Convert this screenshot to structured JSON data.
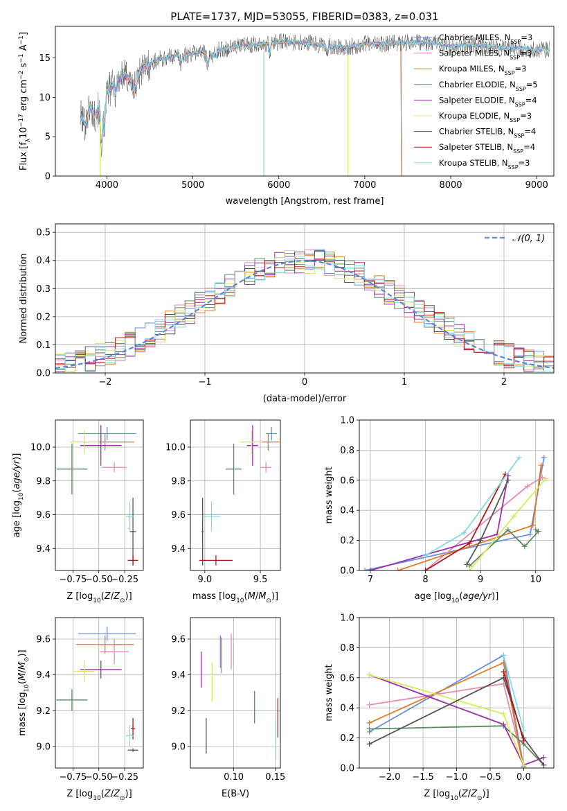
{
  "title": "PLATE=1737, MJD=53055, FIBERID=0383, z=0.031",
  "colors": {
    "chabrier_miles": "#6a8fd9",
    "salpeter_miles": "#e68ab8",
    "kroupa_miles": "#e07b26",
    "chabrier_elodie": "#5a8a5f",
    "salpeter_elodie": "#9b30a8",
    "kroupa_elodie": "#d7ea5a",
    "chabrier_stelib": "#555555",
    "salpeter_stelib": "#b01818",
    "kroupa_stelib": "#86dbe0",
    "normal": "#5b86d9",
    "grid": "#b0b0b0"
  },
  "legend_spectrum": [
    {
      "base": "Chabrier MILES, N",
      "sub": "SSP",
      "tail": "=3",
      "color": "chabrier_miles"
    },
    {
      "base": "Salpeter MILES, N",
      "sub": "SSP",
      "tail": "=3",
      "color": "salpeter_miles"
    },
    {
      "base": "Kroupa MILES, N",
      "sub": "SSP",
      "tail": "=3",
      "color": "kroupa_miles"
    },
    {
      "base": "Chabrier ELODIE, N",
      "sub": "SSP",
      "tail": "=5",
      "color": "chabrier_elodie"
    },
    {
      "base": "Salpeter ELODIE, N",
      "sub": "SSP",
      "tail": "=4",
      "color": "salpeter_elodie"
    },
    {
      "base": "Kroupa ELODIE, N",
      "sub": "SSP",
      "tail": "=3",
      "color": "kroupa_elodie"
    },
    {
      "base": "Chabrier STELIB, N",
      "sub": "SSP",
      "tail": "=4",
      "color": "chabrier_stelib"
    },
    {
      "base": "Salpeter STELIB, N",
      "sub": "SSP",
      "tail": "=4",
      "color": "salpeter_stelib"
    },
    {
      "base": "Kroupa STELIB, N",
      "sub": "SSP",
      "tail": "=3",
      "color": "kroupa_stelib"
    }
  ],
  "chart_data": [
    {
      "id": "spectrum",
      "type": "line",
      "xlabel": "wavelength [Angstrom, rest frame]",
      "ylabel": "Flux [fλ10⁻¹⁷ erg cm⁻² s⁻¹ A⁻¹]",
      "xlim": [
        3400,
        9200
      ],
      "ylim": [
        0,
        19
      ],
      "xticks": [
        4000,
        5000,
        6000,
        7000,
        8000,
        9000
      ],
      "yticks": [
        0,
        5,
        10,
        15
      ],
      "continuum_x": [
        3700,
        3750,
        3800,
        3850,
        3900,
        3950,
        4000,
        4100,
        4200,
        4300,
        4400,
        4500,
        4600,
        4700,
        4800,
        4900,
        5000,
        5100,
        5200,
        5300,
        5400,
        5500,
        5600,
        5700,
        5800,
        5900,
        6000,
        6200,
        6400,
        6600,
        6800,
        7000,
        7200,
        7400,
        7600,
        7800,
        8000,
        8200,
        8400,
        8600,
        8800,
        9000,
        9150
      ],
      "continuum_y": [
        7.5,
        6.5,
        9,
        7.5,
        8.5,
        7,
        10.5,
        12,
        12.8,
        12,
        13.5,
        14.2,
        14.8,
        15,
        15.3,
        15.3,
        15.6,
        15.8,
        15.2,
        16,
        16.2,
        16.4,
        16.6,
        16.7,
        16.8,
        16.8,
        17,
        17,
        16.8,
        16.4,
        16.3,
        16.8,
        16.8,
        16.9,
        17,
        16.9,
        16.5,
        16.7,
        16.5,
        16.3,
        16.2,
        16.0,
        16.1
      ]
    },
    {
      "id": "residuals",
      "type": "histogram",
      "xlabel": "(data-model)/error",
      "ylabel": "Normed distribution",
      "xlim": [
        -2.5,
        2.5
      ],
      "ylim": [
        0,
        0.53
      ],
      "xticks": [
        -2,
        -1,
        0,
        1,
        2
      ],
      "yticks": [
        0.0,
        0.1,
        0.2,
        0.3,
        0.4,
        0.5
      ],
      "legend": "𝒩(0, 1)",
      "bin_width": 0.1
    },
    {
      "id": "age_vs_Z",
      "type": "scatter",
      "xlabel": "Z [log₁₀(Z/Z⊙)]",
      "ylabel": "age  [log₁₀(age/yr)]",
      "xlim": [
        -0.92,
        -0.07
      ],
      "ylim": [
        9.27,
        10.16
      ],
      "xticks": [
        -0.75,
        -0.5,
        -0.25
      ],
      "yticks": [
        9.4,
        9.6,
        9.8,
        10.0
      ],
      "points": [
        {
          "s": "chabrier_miles",
          "x": -0.42,
          "y": 10.08,
          "ex": 0.28,
          "ey": 0.04
        },
        {
          "s": "salpeter_miles",
          "x": -0.35,
          "y": 9.88,
          "ex": 0.12,
          "ey": 0.03
        },
        {
          "s": "kroupa_miles",
          "x": -0.44,
          "y": 10.03,
          "ex": 0.28,
          "ey": 0.05
        },
        {
          "s": "chabrier_elodie",
          "x": -0.76,
          "y": 9.87,
          "ex": 0.15,
          "ey": 0.15
        },
        {
          "s": "salpeter_elodie",
          "x": -0.48,
          "y": 10.01,
          "ex": 0.2,
          "ey": 0.12
        },
        {
          "s": "kroupa_elodie",
          "x": -0.64,
          "y": 10.03,
          "ex": 0.14,
          "ey": 0.07
        },
        {
          "s": "chabrier_stelib",
          "x": -0.17,
          "y": 9.5,
          "ex": 0.03,
          "ey": 0.2
        },
        {
          "s": "salpeter_stelib",
          "x": -0.17,
          "y": 9.33,
          "ex": 0.05,
          "ey": 0.03
        },
        {
          "s": "kroupa_stelib",
          "x": -0.2,
          "y": 9.59,
          "ex": 0.04,
          "ey": 0.09
        }
      ]
    },
    {
      "id": "age_vs_mass",
      "type": "scatter",
      "xlabel": "mass [log₁₀(M/M⊙)]",
      "ylabel": "",
      "xlim": [
        8.87,
        9.68
      ],
      "ylim": [
        9.27,
        10.16
      ],
      "xticks": [
        9.0,
        9.5
      ],
      "yticks": [
        9.4,
        9.6,
        9.8,
        10.0
      ],
      "points": [
        {
          "s": "chabrier_miles",
          "x": 9.6,
          "y": 10.08,
          "ex": 0.05,
          "ey": 0.04
        },
        {
          "s": "salpeter_miles",
          "x": 9.55,
          "y": 9.88,
          "ex": 0.05,
          "ey": 0.03
        },
        {
          "s": "kroupa_miles",
          "x": 9.57,
          "y": 10.03,
          "ex": 0.1,
          "ey": 0.05
        },
        {
          "s": "chabrier_elodie",
          "x": 9.26,
          "y": 9.87,
          "ex": 0.07,
          "ey": 0.15
        },
        {
          "s": "salpeter_elodie",
          "x": 9.43,
          "y": 10.01,
          "ex": 0.05,
          "ey": 0.12
        },
        {
          "s": "kroupa_elodie",
          "x": 9.42,
          "y": 10.03,
          "ex": 0.1,
          "ey": 0.07
        },
        {
          "s": "chabrier_stelib",
          "x": 8.98,
          "y": 9.5,
          "ex": 0.01,
          "ey": 0.2
        },
        {
          "s": "salpeter_stelib",
          "x": 9.1,
          "y": 9.33,
          "ex": 0.15,
          "ey": 0.03
        },
        {
          "s": "kroupa_stelib",
          "x": 9.06,
          "y": 9.59,
          "ex": 0.08,
          "ey": 0.09
        }
      ]
    },
    {
      "id": "mass_vs_Z",
      "type": "scatter",
      "xlabel": "Z [log₁₀(Z/Z⊙)]",
      "ylabel": "mass [log₁₀(M/M⊙)]",
      "xlim": [
        -0.92,
        -0.07
      ],
      "ylim": [
        8.88,
        9.72
      ],
      "xticks": [
        -0.75,
        -0.5,
        -0.25
      ],
      "yticks": [
        9.0,
        9.2,
        9.4,
        9.6
      ],
      "points": [
        {
          "s": "chabrier_miles",
          "x": -0.42,
          "y": 9.63,
          "ex": 0.28,
          "ey": 0.04
        },
        {
          "s": "salpeter_miles",
          "x": -0.35,
          "y": 9.53,
          "ex": 0.14,
          "ey": 0.07
        },
        {
          "s": "kroupa_miles",
          "x": -0.44,
          "y": 9.57,
          "ex": 0.28,
          "ey": 0.05
        },
        {
          "s": "chabrier_elodie",
          "x": -0.76,
          "y": 9.26,
          "ex": 0.15,
          "ey": 0.06
        },
        {
          "s": "salpeter_elodie",
          "x": -0.48,
          "y": 9.43,
          "ex": 0.2,
          "ey": 0.05
        },
        {
          "s": "kroupa_elodie",
          "x": -0.64,
          "y": 9.42,
          "ex": 0.1,
          "ey": 0.06
        },
        {
          "s": "chabrier_stelib",
          "x": -0.17,
          "y": 8.98,
          "ex": 0.05,
          "ey": 0.01
        },
        {
          "s": "salpeter_stelib",
          "x": -0.17,
          "y": 9.1,
          "ex": 0.02,
          "ey": 0.06
        },
        {
          "s": "kroupa_stelib",
          "x": -0.2,
          "y": 9.06,
          "ex": 0.04,
          "ey": 0.06
        }
      ]
    },
    {
      "id": "mass_vs_ebv",
      "type": "scatter",
      "xlabel": "E(B-V)",
      "ylabel": "",
      "xlim": [
        0.048,
        0.156
      ],
      "ylim": [
        8.88,
        9.72
      ],
      "xticks": [
        0.1,
        0.15
      ],
      "yticks": [
        9.0,
        9.2,
        9.4,
        9.6
      ],
      "points": [
        {
          "s": "chabrier_miles",
          "x": 0.084,
          "y": 9.53,
          "ex": 0,
          "ey": 0.09
        },
        {
          "s": "salpeter_miles",
          "x": 0.097,
          "y": 9.53,
          "ex": 0,
          "ey": 0.1
        },
        {
          "s": "kroupa_miles",
          "x": 0.085,
          "y": 9.51,
          "ex": 0,
          "ey": 0.1
        },
        {
          "s": "chabrier_elodie",
          "x": 0.125,
          "y": 9.22,
          "ex": 0,
          "ey": 0.09
        },
        {
          "s": "salpeter_elodie",
          "x": 0.061,
          "y": 9.43,
          "ex": 0,
          "ey": 0.1
        },
        {
          "s": "kroupa_elodie",
          "x": 0.074,
          "y": 9.36,
          "ex": 0,
          "ey": 0.11
        },
        {
          "s": "chabrier_stelib",
          "x": 0.067,
          "y": 9.06,
          "ex": 0,
          "ey": 0.1
        },
        {
          "s": "salpeter_stelib",
          "x": 0.153,
          "y": 9.16,
          "ex": 0,
          "ey": 0.11
        },
        {
          "s": "kroupa_stelib",
          "x": 0.15,
          "y": 9.03,
          "ex": 0,
          "ey": 0.1
        }
      ]
    },
    {
      "id": "massweight_vs_age",
      "type": "line",
      "xlabel": "age  [log₁₀(age/yr)]",
      "ylabel": "mass weight",
      "xlim": [
        6.8,
        10.33
      ],
      "ylim": [
        0,
        1
      ],
      "xticks": [
        7,
        8,
        9,
        10
      ],
      "yticks": [
        0.0,
        0.2,
        0.4,
        0.6,
        0.8,
        1.0
      ],
      "series": [
        {
          "s": "chabrier_miles",
          "x": [
            6.9,
            9.9,
            10.15
          ],
          "y": [
            0.0,
            0.24,
            0.75
          ]
        },
        {
          "s": "salpeter_miles",
          "x": [
            8.0,
            9.85,
            10.12
          ],
          "y": [
            0.0,
            0.56,
            0.62
          ]
        },
        {
          "s": "kroupa_miles",
          "x": [
            7.5,
            9.95,
            10.1
          ],
          "y": [
            0.0,
            0.3,
            0.7
          ]
        },
        {
          "s": "chabrier_elodie",
          "x": [
            8.8,
            9.5,
            9.8,
            10.05,
            10.0
          ],
          "y": [
            0.03,
            0.27,
            0.16,
            0.26,
            0.27
          ]
        },
        {
          "s": "salpeter_elodie",
          "x": [
            7.0,
            9.3,
            9.5
          ],
          "y": [
            0.0,
            0.24,
            0.63
          ]
        },
        {
          "s": "kroupa_elodie",
          "x": [
            8.8,
            9.6,
            10.18
          ],
          "y": [
            0.0,
            0.36,
            0.61
          ]
        },
        {
          "s": "chabrier_stelib",
          "x": [
            8.75,
            9.0,
            9.5
          ],
          "y": [
            0.04,
            0.2,
            0.6
          ]
        },
        {
          "s": "salpeter_stelib",
          "x": [
            8.0,
            8.8,
            9.45
          ],
          "y": [
            0.0,
            0.18,
            0.64
          ]
        },
        {
          "s": "kroupa_stelib",
          "x": [
            8.0,
            8.7,
            9.7
          ],
          "y": [
            0.1,
            0.25,
            0.75
          ]
        }
      ]
    },
    {
      "id": "massweight_vs_Z",
      "type": "line",
      "xlabel": "Z [log₁₀(Z/Z⊙)]",
      "ylabel": "mass weight",
      "xlim": [
        -2.45,
        0.45
      ],
      "ylim": [
        0,
        1
      ],
      "xticks": [
        -2.0,
        -1.5,
        -1.0,
        -0.5,
        0.0
      ],
      "yticks": [
        0.0,
        0.2,
        0.4,
        0.6,
        0.8,
        1.0
      ],
      "series": [
        {
          "s": "chabrier_miles",
          "x": [
            -2.3,
            -0.3,
            0.0
          ],
          "y": [
            0.24,
            0.75,
            0.01
          ]
        },
        {
          "s": "salpeter_miles",
          "x": [
            -2.3,
            -0.3,
            0.0
          ],
          "y": [
            0.42,
            0.56,
            0.02
          ]
        },
        {
          "s": "kroupa_miles",
          "x": [
            -2.3,
            -0.3,
            0.0
          ],
          "y": [
            0.3,
            0.7,
            0.0
          ]
        },
        {
          "s": "chabrier_elodie",
          "x": [
            -2.3,
            -0.3,
            0.0,
            0.3
          ],
          "y": [
            0.26,
            0.28,
            0.16,
            0.02
          ]
        },
        {
          "s": "salpeter_elodie",
          "x": [
            -2.3,
            -0.3,
            0.0,
            0.3
          ],
          "y": [
            0.62,
            0.29,
            0.02,
            0.07
          ]
        },
        {
          "s": "kroupa_elodie",
          "x": [
            -2.3,
            -0.3,
            0.0
          ],
          "y": [
            0.62,
            0.36,
            0.02
          ]
        },
        {
          "s": "chabrier_stelib",
          "x": [
            -2.3,
            -0.3,
            0.0,
            0.3
          ],
          "y": [
            0.16,
            0.6,
            0.2,
            0.02
          ]
        },
        {
          "s": "salpeter_stelib",
          "x": [
            -0.3,
            0.0
          ],
          "y": [
            0.64,
            0.18
          ]
        },
        {
          "s": "kroupa_stelib",
          "x": [
            -0.3,
            0.0
          ],
          "y": [
            0.75,
            0.25
          ]
        }
      ]
    }
  ]
}
